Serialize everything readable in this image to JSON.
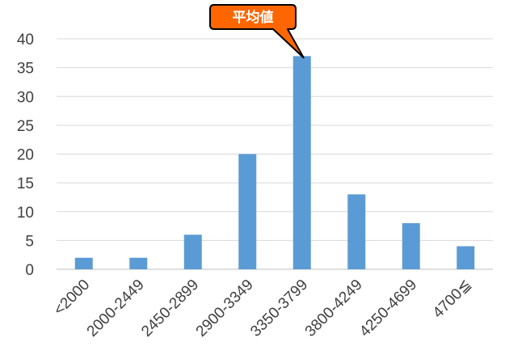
{
  "chart_data": {
    "type": "bar",
    "title": "",
    "xlabel": "",
    "ylabel": "",
    "categories": [
      "<2000",
      "2000-2449",
      "2450-2899",
      "2900-3349",
      "3350-3799",
      "3800-4249",
      "4250-4699",
      "4700≦"
    ],
    "values": [
      2,
      2,
      6,
      20,
      37,
      13,
      8,
      4
    ],
    "ylim": [
      0,
      40
    ],
    "yticks": [
      0,
      5,
      10,
      15,
      20,
      25,
      30,
      35,
      40
    ],
    "grid": true,
    "legend": "none",
    "bar_color": "#5b9bd5",
    "annotations": [
      {
        "text": "平均値",
        "target_category": "3350-3799",
        "fill_color": "#ff6600",
        "border_color": "#000000",
        "text_color": "#ffffff"
      }
    ]
  }
}
